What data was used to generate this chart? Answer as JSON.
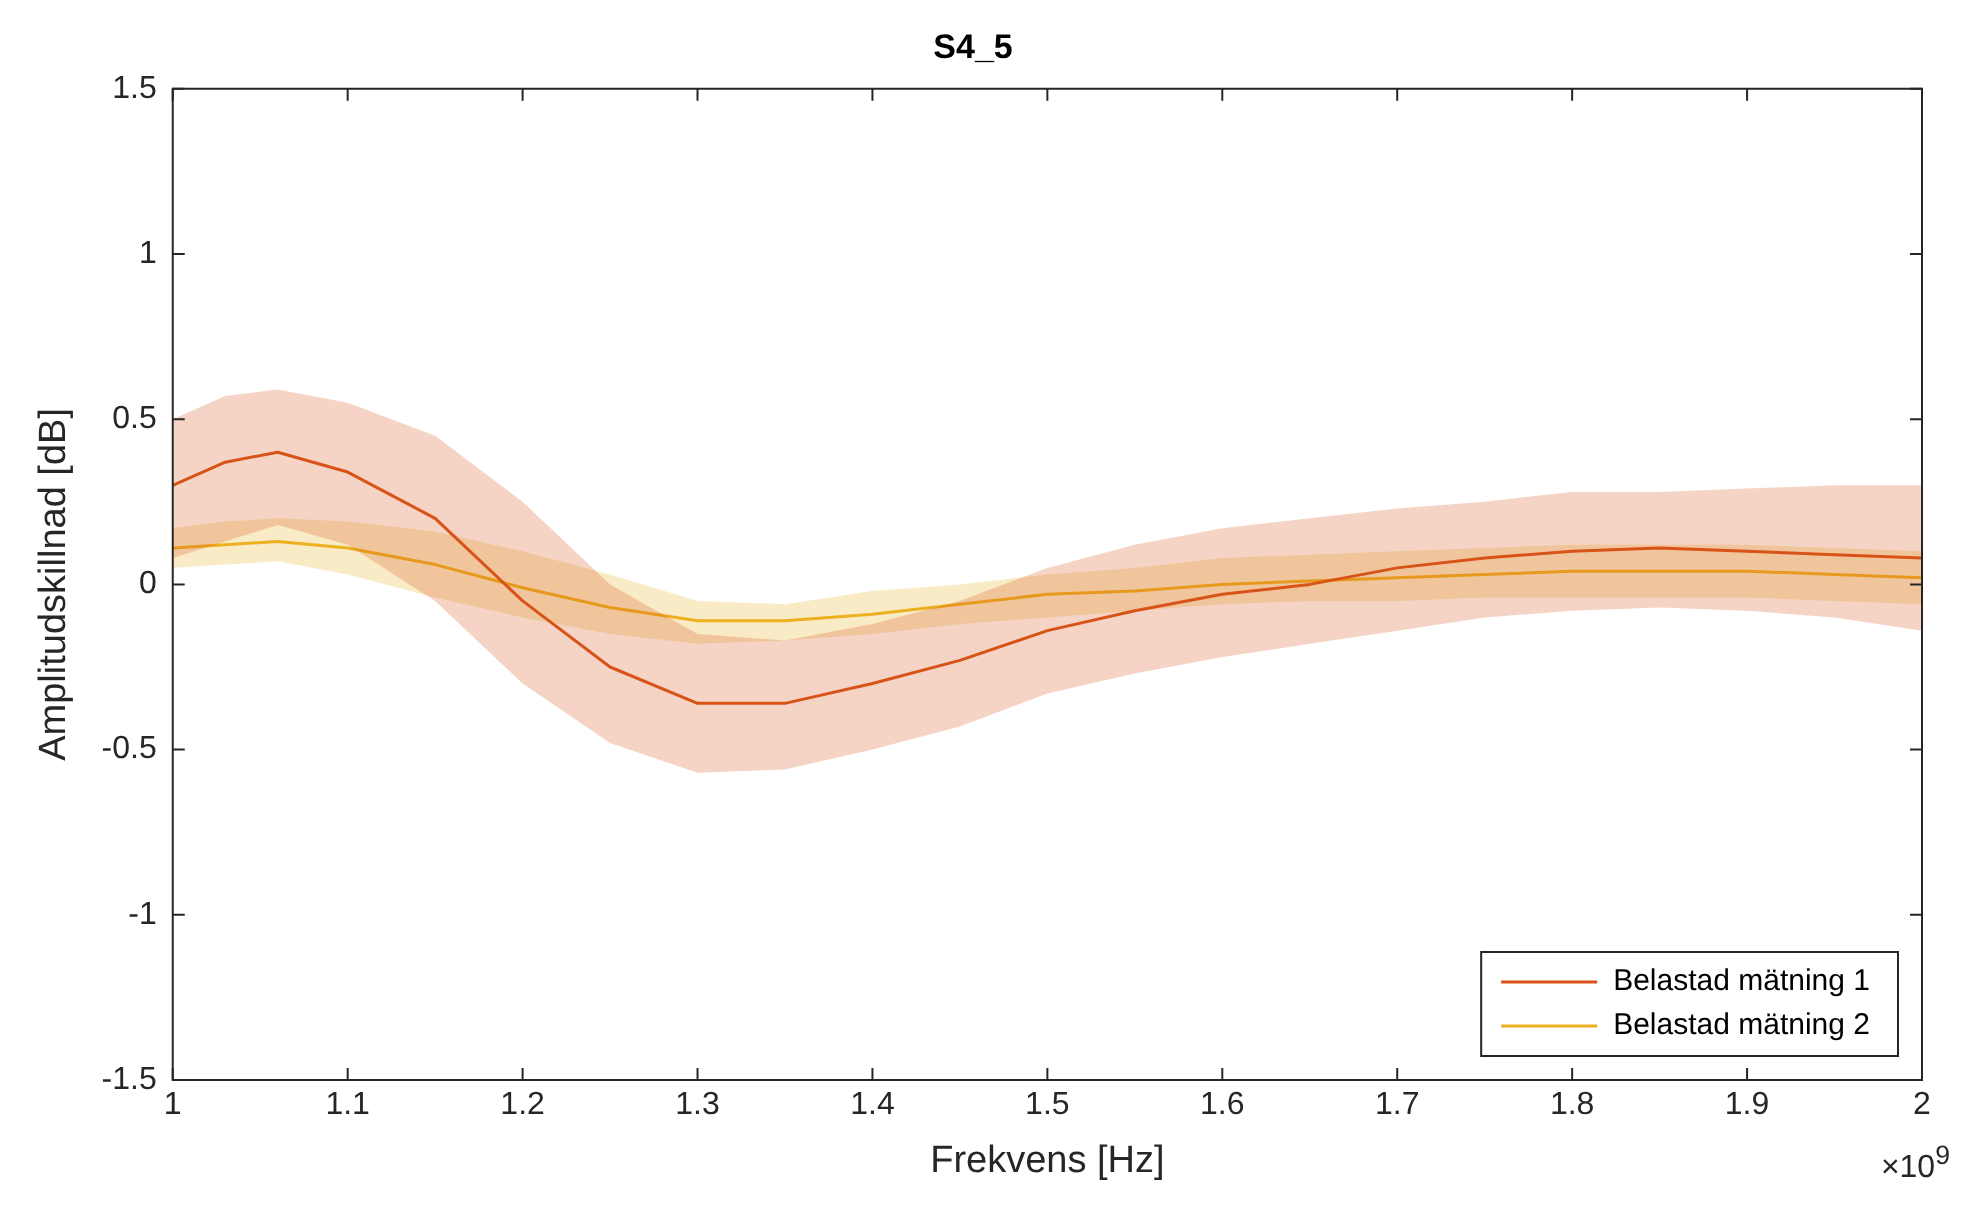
{
  "chart_data": {
    "type": "line",
    "title": "S4_5",
    "xlabel": "Frekvens [Hz]",
    "ylabel": "Amplitudskillnad [dB]",
    "annotations": [
      "×10$^{9}$"
    ],
    "x": [
      1.0,
      1.03,
      1.06,
      1.1,
      1.15,
      1.2,
      1.25,
      1.3,
      1.35,
      1.4,
      1.45,
      1.5,
      1.55,
      1.6,
      1.65,
      1.7,
      1.75,
      1.8,
      1.85,
      1.9,
      1.95,
      2.0
    ],
    "series": [
      {
        "name": "Belastad mätning 1",
        "color": "#d95319",
        "values": [
          0.3,
          0.37,
          0.4,
          0.34,
          0.2,
          -0.05,
          -0.25,
          -0.36,
          -0.36,
          -0.3,
          -0.23,
          -0.14,
          -0.08,
          -0.03,
          0.0,
          0.05,
          0.08,
          0.1,
          0.11,
          0.1,
          0.09,
          0.08
        ],
        "upper": [
          0.5,
          0.57,
          0.59,
          0.55,
          0.45,
          0.25,
          0.0,
          -0.15,
          -0.17,
          -0.12,
          -0.05,
          0.05,
          0.12,
          0.17,
          0.2,
          0.23,
          0.25,
          0.28,
          0.28,
          0.29,
          0.3,
          0.3
        ],
        "lower": [
          0.08,
          0.13,
          0.18,
          0.12,
          -0.05,
          -0.3,
          -0.48,
          -0.57,
          -0.56,
          -0.5,
          -0.43,
          -0.33,
          -0.27,
          -0.22,
          -0.18,
          -0.14,
          -0.1,
          -0.08,
          -0.07,
          -0.08,
          -0.1,
          -0.14
        ]
      },
      {
        "name": "Belastad mätning 2",
        "color": "#edb120",
        "values": [
          0.11,
          0.12,
          0.13,
          0.11,
          0.06,
          -0.01,
          -0.07,
          -0.11,
          -0.11,
          -0.09,
          -0.06,
          -0.03,
          -0.02,
          0.0,
          0.01,
          0.02,
          0.03,
          0.04,
          0.04,
          0.04,
          0.03,
          0.02
        ],
        "upper": [
          0.17,
          0.19,
          0.2,
          0.19,
          0.16,
          0.1,
          0.03,
          -0.05,
          -0.06,
          -0.02,
          0.0,
          0.03,
          0.05,
          0.08,
          0.09,
          0.1,
          0.11,
          0.12,
          0.12,
          0.12,
          0.11,
          0.1
        ],
        "lower": [
          0.05,
          0.06,
          0.07,
          0.03,
          -0.04,
          -0.1,
          -0.15,
          -0.18,
          -0.17,
          -0.15,
          -0.12,
          -0.1,
          -0.08,
          -0.06,
          -0.05,
          -0.05,
          -0.04,
          -0.04,
          -0.04,
          -0.04,
          -0.05,
          -0.06
        ]
      }
    ],
    "xlim": [
      1,
      2
    ],
    "xticks": [
      1,
      1.1,
      1.2,
      1.3,
      1.4,
      1.5,
      1.6,
      1.7,
      1.8,
      1.9,
      2
    ],
    "ylim": [
      -1.5,
      1.5
    ],
    "yticks": [
      -1.5,
      -1,
      -0.5,
      0,
      0.5,
      1,
      1.5
    ],
    "grid": false,
    "legend": "bottom right",
    "marker": "none",
    "line_style": "solid"
  }
}
